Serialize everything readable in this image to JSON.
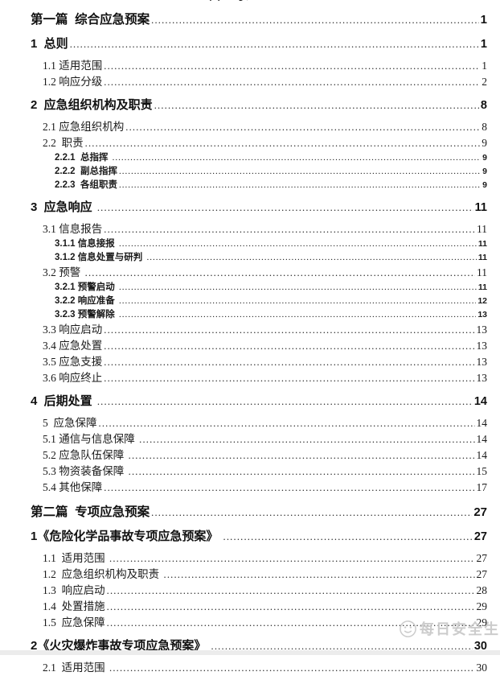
{
  "page": {
    "cutoff_title": "目 录",
    "watermark": {
      "icon": "smiley-logo-icon",
      "text": "每日安全生"
    }
  },
  "toc": {
    "entries": [
      {
        "level": "part",
        "label": "第一篇  综合应急预案",
        "page": "1"
      },
      {
        "level": "h1",
        "label": "1  总则",
        "page": "1"
      },
      {
        "level": "h2",
        "label": "1.1 适用范围",
        "page": "1"
      },
      {
        "level": "h2",
        "label": "1.2 响应分级",
        "page": "2"
      },
      {
        "level": "h1",
        "label": "2  应急组织机构及职责",
        "page": "8"
      },
      {
        "level": "h2",
        "label": "2.1 应急组织机构",
        "page": "8"
      },
      {
        "level": "h2",
        "label": "2.2  职责",
        "page": "9"
      },
      {
        "level": "h3",
        "label": "2.2.1  总指挥 ",
        "page": "9"
      },
      {
        "level": "h3",
        "label": "2.2.2  副总指挥",
        "page": "9"
      },
      {
        "level": "h3",
        "label": "2.2.3  各组职责",
        "page": "9"
      },
      {
        "level": "h1",
        "label": "3  应急响应 ",
        "page": "11"
      },
      {
        "level": "h2",
        "label": "3.1 信息报告",
        "page": "11"
      },
      {
        "level": "h3",
        "label": "3.1.1 信息接报 ",
        "page": "11"
      },
      {
        "level": "h3",
        "label": "3.1.2 信息处置与研判 ",
        "page": "11"
      },
      {
        "level": "h2",
        "label": "3.2 预警 ",
        "page": "11"
      },
      {
        "level": "h3",
        "label": "3.2.1 预警启动 ",
        "page": "11"
      },
      {
        "level": "h3",
        "label": "3.2.2 响应准备 ",
        "page": "12"
      },
      {
        "level": "h3",
        "label": "3.2.3 预警解除 ",
        "page": "13"
      },
      {
        "level": "h2",
        "label": "3.3 响应启动",
        "page": "13"
      },
      {
        "level": "h2",
        "label": "3.4 应急处置",
        "page": "13"
      },
      {
        "level": "h2",
        "label": "3.5 应急支援",
        "page": "13"
      },
      {
        "level": "h2",
        "label": "3.6 响应终止",
        "page": "13"
      },
      {
        "level": "h1",
        "label": "4  后期处置 ",
        "page": "14"
      },
      {
        "level": "h2",
        "label": "5  应急保障",
        "page": "14"
      },
      {
        "level": "h2",
        "label": "5.1 通信与信息保障 ",
        "page": "14"
      },
      {
        "level": "h2",
        "label": "5.2 应急队伍保障 ",
        "page": "14"
      },
      {
        "level": "h2",
        "label": "5.3 物资装备保障 ",
        "page": "15"
      },
      {
        "level": "h2",
        "label": "5.4 其他保障",
        "page": "17"
      },
      {
        "level": "part",
        "label": "第二篇  专项应急预案",
        "page": "27"
      },
      {
        "level": "h1",
        "label": "1《危险化学品事故专项应急预案》 ",
        "page": "27"
      },
      {
        "level": "h2",
        "label": "1.1  适用范围 ",
        "page": "27"
      },
      {
        "level": "h2",
        "label": "1.2  应急组织机构及职责 ",
        "page": "27"
      },
      {
        "level": "h2",
        "label": "1.3  响应启动",
        "page": "28"
      },
      {
        "level": "h2",
        "label": "1.4  处置措施",
        "page": "29"
      },
      {
        "level": "h2",
        "label": "1.5  应急保障",
        "page": "29"
      },
      {
        "level": "h1",
        "label": "2《火灾爆炸事故专项应急预案》 ",
        "page": "30"
      },
      {
        "level": "h2",
        "label": "2.1  适用范围 ",
        "page": "30"
      }
    ]
  }
}
